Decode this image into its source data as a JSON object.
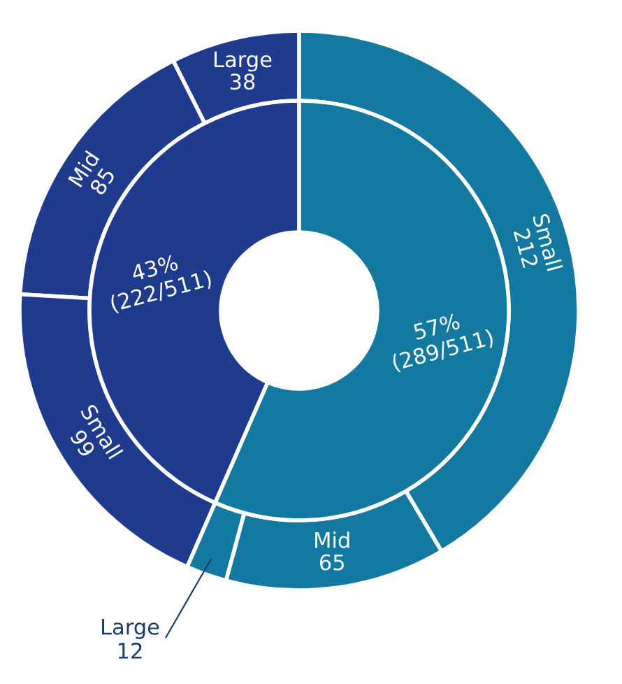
{
  "chart_data": {
    "type": "donut",
    "data_labels": true,
    "categories": [
      "Large",
      "Mid",
      "Small",
      "Large",
      "Mid",
      "Small"
    ],
    "series": [
      {
        "values": [
          38,
          85,
          99,
          12,
          65,
          212
        ],
        "colors": [
          "#1f3b8e",
          "#1f3b8e",
          "#1f3b8e",
          "#1379a0",
          "#1379a0",
          "#1379a0"
        ]
      },
      {
        "values": [
          222,
          null,
          null,
          289,
          null,
          null
        ],
        "colors": [
          "#1f3b8e",
          null,
          null,
          "#1379a0",
          null,
          null
        ],
        "value_labels": [
          "43%\n(222/511)",
          null,
          null,
          "57%\n(289/511)",
          null,
          null
        ]
      }
    ]
  }
}
